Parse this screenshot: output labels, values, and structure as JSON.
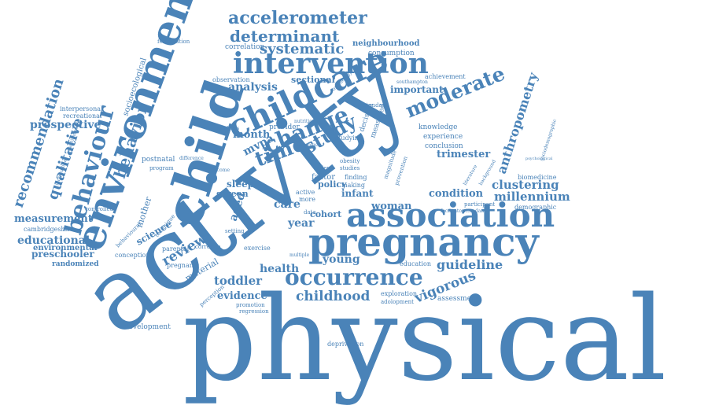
{
  "colors": {
    "word": "#4a83b8",
    "background": "#ffffff"
  },
  "major_words": {
    "physical": "physical",
    "activity": "activity",
    "pregnancy": "pregnancy",
    "association": "association",
    "environment": "environment",
    "child": "child",
    "childcare": "childcare",
    "intervention": "intervention",
    "behaviour": "behaviour",
    "occurrence": "occurrence",
    "moderate": "moderate",
    "change": "change",
    "time": "time",
    "study": "study",
    "accelerometer": "accelerometer",
    "determinant": "determinant",
    "systematic": "systematic",
    "recommendation": "recommendation",
    "qualitative": "qualitative",
    "behavior": "behavior",
    "review": "review",
    "childhood": "childhood",
    "vigorous": "vigorous",
    "guideline": "guideline",
    "clustering": "clustering",
    "millennium": "millennium",
    "anthropometry": "anthropometry",
    "trimester": "trimester",
    "condition": "condition",
    "woman": "woman",
    "toddler": "toddler",
    "evidence": "evidence",
    "health": "health",
    "young": "young",
    "educational": "educational",
    "preschooler": "preschooler",
    "measurement": "measurement",
    "prospective": "prospective",
    "analysis": "analysis",
    "year": "year",
    "care": "care",
    "month": "month",
    "mvpa": "mvpa",
    "science": "science",
    "environmental": "environmental",
    "sectional": "sectional",
    "important": "important",
    "aged": "aged",
    "sleep": "sleep",
    "screen": "screen",
    "infant": "infant",
    "cohort": "cohort",
    "policy": "policy",
    "neighbourhood": "neighbourhood",
    "correlation": "correlation",
    "consumption": "consumption",
    "achievement": "achievement",
    "knowledge": "knowledge",
    "experience": "experience",
    "conclusion": "conclusion",
    "biomedicine": "biomedicine",
    "demographic": "demographic",
    "participant": "participant",
    "assessment": "assessment",
    "exploration": "exploration",
    "adolopment": "adolopment",
    "education": "education",
    "deprivation": "deprivation",
    "development": "development",
    "regression": "regression",
    "promotion": "promotion",
    "perception": "perception",
    "material": "material",
    "pregnant": "pregnant",
    "conception": "conception",
    "randomized": "randomized",
    "cambridgeshire": "cambridgeshire",
    "controlled": "controlled",
    "postnatal": "postnatal",
    "program": "program",
    "mother": "mother",
    "observation": "observation",
    "fertilization": "fertilization",
    "socioecological": "socioecological",
    "interpersonal": "interpersonal",
    "recreational": "recreational",
    "longitudinal": "longitudinal",
    "quantitative": "quantitative",
    "exercise": "exercise",
    "more": "more",
    "active": "active",
    "finding": "finding",
    "making": "making",
    "factor": "factor",
    "index": "index",
    "studies": "studies",
    "obesity": "obesity",
    "decision": "decision",
    "studying": "studying",
    "provider": "provider",
    "measured": "measured",
    "standard": "standard",
    "southampton": "southampton",
    "technology": "technology",
    "magnitude": "magnitude",
    "prevention": "prevention",
    "literature": "literature",
    "facilitator": "facilitator",
    "parental": "parental",
    "setting": "setting",
    "data": "data",
    "income": "income",
    "synthesis": "synthesis",
    "difference": "difference",
    "behavioural": "behavioural",
    "technique": "technique",
    "correlate": "correlate",
    "nutrition": "nutrition",
    "attendance": "attendance",
    "sociodemographic": "sociodemographic",
    "psychological": "psychological",
    "background": "background",
    "outcome": "outcome",
    "multiple": "multiple"
  }
}
